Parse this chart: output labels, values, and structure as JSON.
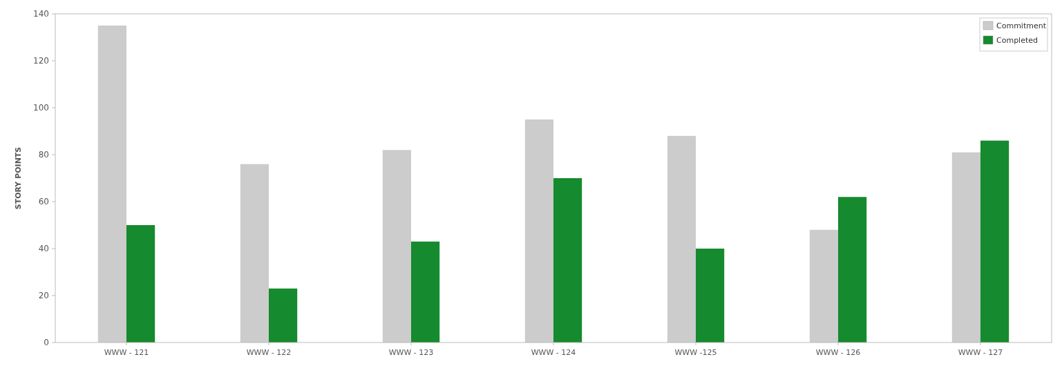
{
  "chart_data": {
    "type": "bar",
    "ylabel": "STORY POINTS",
    "categories": [
      "WWW - 121",
      "WWW - 122",
      "WWW - 123",
      "WWW - 124",
      "WWW -125",
      "WWW - 126",
      "WWW - 127"
    ],
    "series": [
      {
        "name": "Commitment",
        "color": "#cccccc",
        "values": [
          135,
          76,
          82,
          95,
          88,
          48,
          81
        ]
      },
      {
        "name": "Completed",
        "color": "#158a2e",
        "values": [
          50,
          23,
          43,
          70,
          40,
          62,
          86
        ]
      }
    ],
    "ylim": [
      0,
      140
    ],
    "yticks": [
      0,
      20,
      40,
      60,
      80,
      100,
      120,
      140
    ],
    "grid": false,
    "legend": "top right"
  }
}
